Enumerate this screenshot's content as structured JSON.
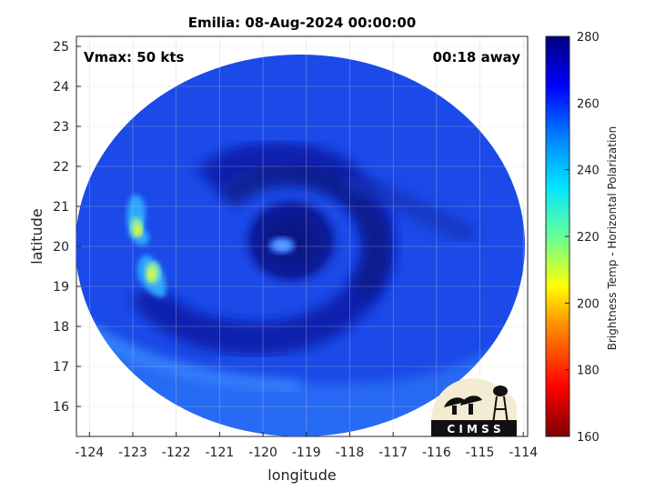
{
  "title": "Emilia: 08-Aug-2024 00:00:00",
  "vmax_label": "Vmax: 50 kts",
  "away_label": "00:18 away",
  "xlabel": "longitude",
  "ylabel": "latitude",
  "x_ticks": [
    "-124",
    "-123",
    "-122",
    "-121",
    "-120",
    "-119",
    "-118",
    "-117",
    "-116",
    "-115",
    "-114"
  ],
  "y_ticks": [
    "16",
    "17",
    "18",
    "19",
    "20",
    "21",
    "22",
    "23",
    "24",
    "25"
  ],
  "colorbar": {
    "label": "Brightness Temp - Horizontal Polarization",
    "ticks": [
      "160",
      "180",
      "200",
      "220",
      "240",
      "260",
      "280"
    ],
    "range": [
      160,
      280
    ]
  },
  "logo": {
    "text": "C I M S S"
  },
  "colors": {
    "background_blue": "#1a46e6",
    "core_dark_blue": "#0a1890",
    "warm_cyan": "#2ea6ff",
    "cold_yellow": "#e6f23c"
  }
}
